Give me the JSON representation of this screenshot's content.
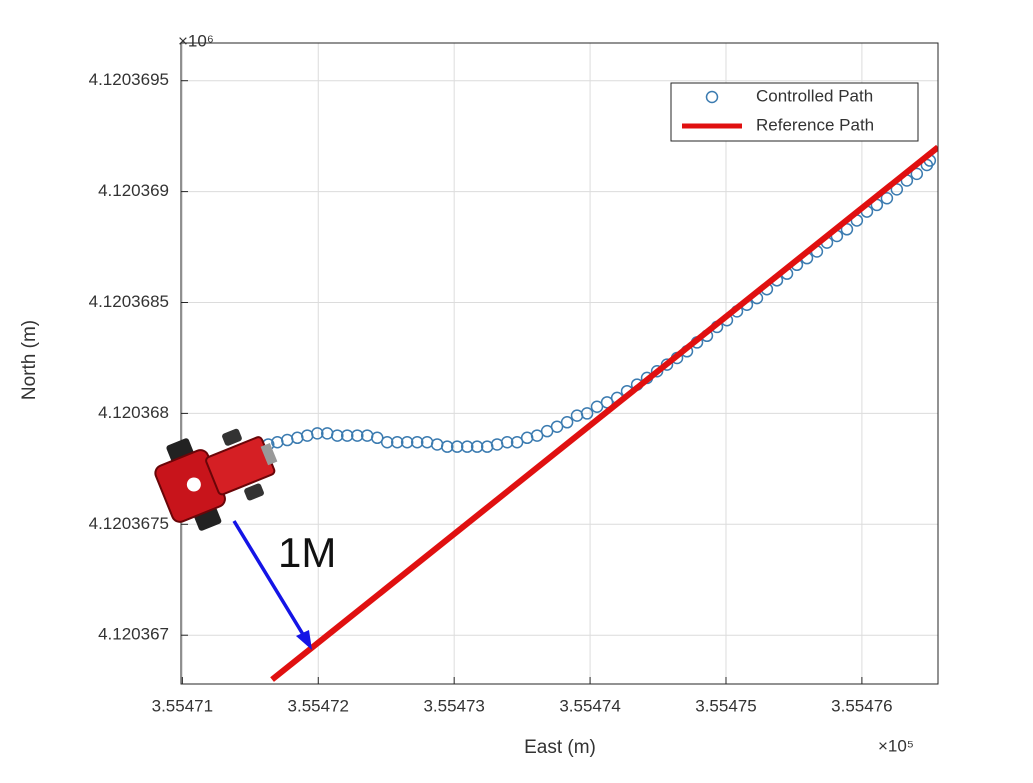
{
  "chart_data": {
    "type": "scatter",
    "xlabel": "East (m)",
    "ylabel": "North (m)",
    "x_multiplier": "×10⁵",
    "y_multiplier": "×10⁶",
    "annotation": "1M",
    "xlim": [
      3.5547099,
      3.5547656
    ],
    "ylim": [
      4.12036678,
      4.12036967
    ],
    "xticks": [
      3.55471,
      3.55472,
      3.55473,
      3.55474,
      3.55475,
      3.55476
    ],
    "yticks": [
      4.120367,
      4.1203675,
      4.120368,
      4.1203685,
      4.120369,
      4.1203695
    ],
    "grid": true,
    "legend": "upper right",
    "series": [
      {
        "name": "Controlled Path",
        "color": "#3b7bb0",
        "mode": "markers",
        "x": [
          3.55471632,
          3.55471699,
          3.55471772,
          3.55471846,
          3.55471919,
          3.55471993,
          3.55472066,
          3.5547214,
          3.55472213,
          3.55472287,
          3.5547236,
          3.55472434,
          3.55472507,
          3.55472581,
          3.55472654,
          3.55472728,
          3.55472801,
          3.55472875,
          3.55472949,
          3.55473022,
          3.55473096,
          3.55473169,
          3.55473243,
          3.55473316,
          3.5547339,
          3.55473463,
          3.55473537,
          3.5547361,
          3.55473684,
          3.55473757,
          3.55473831,
          3.55473904,
          3.55473978,
          3.55474051,
          3.55474125,
          3.55474199,
          3.55474272,
          3.55474346,
          3.55474419,
          3.55474493,
          3.55474566,
          3.5547464,
          3.55474713,
          3.55474787,
          3.5547486,
          3.55474934,
          3.55475007,
          3.55475081,
          3.55475154,
          3.55475228,
          3.55475301,
          3.55475375,
          3.55475449,
          3.55475522,
          3.55475596,
          3.55475669,
          3.55475743,
          3.55475816,
          3.5547589,
          3.55475963,
          3.55476037,
          3.5547611,
          3.55476184,
          3.55476257,
          3.55476331,
          3.55476404,
          3.55476478,
          3.554765
        ],
        "values": [
          4.12036786,
          4.12036787,
          4.12036788,
          4.12036789,
          4.1203679,
          4.12036791,
          4.12036791,
          4.1203679,
          4.1203679,
          4.1203679,
          4.1203679,
          4.12036789,
          4.12036787,
          4.12036787,
          4.12036787,
          4.12036787,
          4.12036787,
          4.12036786,
          4.12036785,
          4.12036785,
          4.12036785,
          4.12036785,
          4.12036785,
          4.12036786,
          4.12036787,
          4.12036787,
          4.12036789,
          4.1203679,
          4.12036792,
          4.12036794,
          4.12036796,
          4.12036799,
          4.120368,
          4.12036803,
          4.12036805,
          4.12036807,
          4.1203681,
          4.12036813,
          4.12036816,
          4.12036819,
          4.12036822,
          4.12036825,
          4.12036828,
          4.12036832,
          4.12036835,
          4.12036839,
          4.12036842,
          4.12036846,
          4.12036849,
          4.12036852,
          4.12036856,
          4.1203686,
          4.12036863,
          4.12036867,
          4.1203687,
          4.12036873,
          4.12036877,
          4.1203688,
          4.12036883,
          4.12036887,
          4.12036891,
          4.12036894,
          4.12036897,
          4.12036901,
          4.12036905,
          4.12036908,
          4.12036912,
          4.12036914
        ]
      },
      {
        "name": "Reference Path",
        "color": "#e01010",
        "mode": "line",
        "x": [
          3.5547166,
          3.5547656
        ],
        "values": [
          4.1203668,
          4.1203692
        ]
      }
    ]
  }
}
